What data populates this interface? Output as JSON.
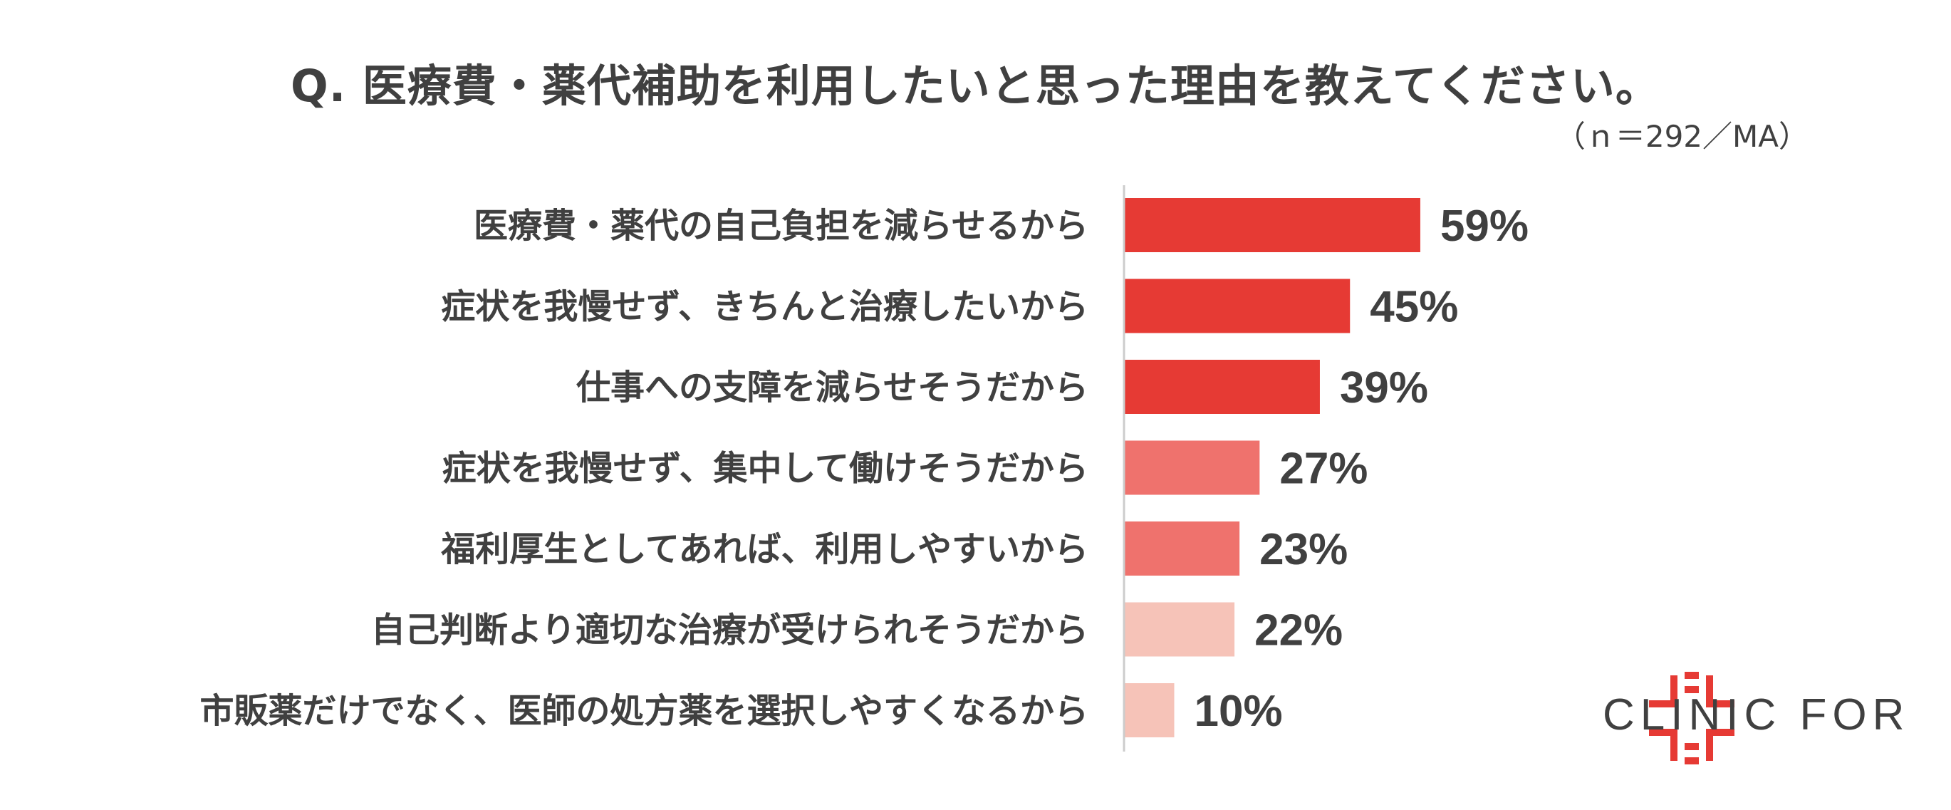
{
  "chart_data": {
    "type": "bar",
    "orientation": "horizontal",
    "title": "Q. 医療費・薬代補助を利用したいと思った理由を教えてください。",
    "note": "（ｎ＝292／MA）",
    "categories": [
      "医療費・薬代の自己負担を減らせるから",
      "症状を我慢せず、きちんと治療したいから",
      "仕事への支障を減らせそうだから",
      "症状を我慢せず、集中して働けそうだから",
      "福利厚生としてあれば、利用しやすいから",
      "自己判断より適切な治療が受けられそうだから",
      "市販薬だけでなく、医師の処方薬を選択しやすくなるから"
    ],
    "values": [
      59,
      45,
      39,
      27,
      23,
      22,
      10
    ],
    "value_labels": [
      "59%",
      "45%",
      "39%",
      "27%",
      "23%",
      "22%",
      "10%"
    ],
    "unit": "%",
    "bar_colors": [
      "#e63a34",
      "#e63a34",
      "#e63a34",
      "#ef726d",
      "#ef726d",
      "#f6c3b8",
      "#f6c3b8"
    ],
    "xlim": [
      0,
      100
    ],
    "grid": false
  },
  "brand": {
    "name": "CLINIC FOR",
    "color": "#e63a34",
    "icon": "cross-logo-icon"
  }
}
